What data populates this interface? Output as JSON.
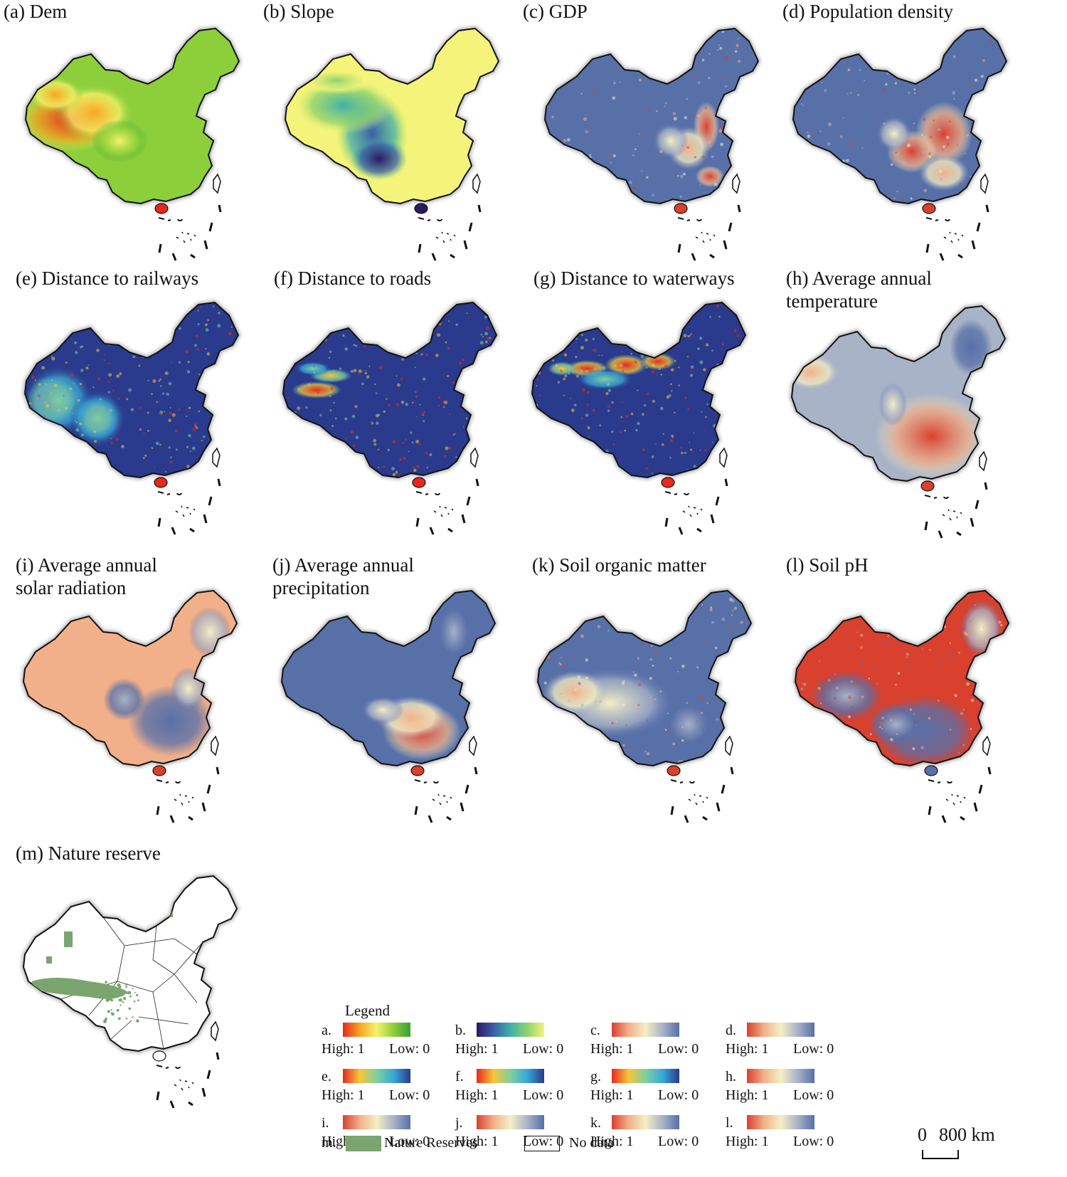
{
  "panels": [
    {
      "id": "a",
      "title": "(a) Dem",
      "title2": "",
      "ramp": "dem"
    },
    {
      "id": "b",
      "title": "(b) Slope",
      "title2": "",
      "ramp": "slope"
    },
    {
      "id": "c",
      "title": "(c) GDP",
      "title2": "",
      "ramp": "gdp"
    },
    {
      "id": "d",
      "title": "(d) Population density",
      "title2": "",
      "ramp": "pop"
    },
    {
      "id": "e",
      "title": "(e) Distance to railways",
      "title2": "",
      "ramp": "rail"
    },
    {
      "id": "f",
      "title": "(f) Distance to roads",
      "title2": "",
      "ramp": "road"
    },
    {
      "id": "g",
      "title": "(g) Distance to waterways",
      "title2": "",
      "ramp": "water"
    },
    {
      "id": "h",
      "title": "(h) Average annual",
      "title2": "temperature",
      "ramp": "temp"
    },
    {
      "id": "i",
      "title": "(i) Average annual",
      "title2": "solar radiation",
      "ramp": "solar"
    },
    {
      "id": "j",
      "title": "(j) Average annual",
      "title2": "precipitation",
      "ramp": "precip"
    },
    {
      "id": "k",
      "title": "(k) Soil organic matter",
      "title2": "",
      "ramp": "som"
    },
    {
      "id": "l",
      "title": "(l) Soil pH",
      "title2": "",
      "ramp": "ph"
    },
    {
      "id": "m",
      "title": "(m) Nature reserve",
      "title2": "",
      "ramp": "reserve"
    }
  ],
  "legend": {
    "title": "Legend",
    "high_label": "High: 1",
    "low_label": "Low: 0",
    "items": [
      {
        "key": "a.",
        "colors": [
          "#e8281e",
          "#f5a623",
          "#f7f36a",
          "#8ccf3b",
          "#37a032"
        ]
      },
      {
        "key": "b.",
        "colors": [
          "#2a1b5e",
          "#3a5ea8",
          "#3fb0a8",
          "#8fd36b",
          "#f4f47a"
        ]
      },
      {
        "key": "c.",
        "colors": [
          "#d9402e",
          "#f2b08a",
          "#f4efc4",
          "#a9b3c8",
          "#5870a8"
        ]
      },
      {
        "key": "d.",
        "colors": [
          "#d9402e",
          "#f2b08a",
          "#f4efc4",
          "#a9b3c8",
          "#5870a8"
        ]
      },
      {
        "key": "e.",
        "colors": [
          "#e8281e",
          "#f7c63a",
          "#7fd0a0",
          "#38a8d8",
          "#2a3a8c"
        ]
      },
      {
        "key": "f.",
        "colors": [
          "#e8281e",
          "#f7c63a",
          "#7fd0a0",
          "#38a8d8",
          "#2a3a8c"
        ]
      },
      {
        "key": "g.",
        "colors": [
          "#e8281e",
          "#f7c63a",
          "#7fd0a0",
          "#38a8d8",
          "#2a3a8c"
        ]
      },
      {
        "key": "h.",
        "colors": [
          "#d9402e",
          "#f2b08a",
          "#f4efc4",
          "#a9b3c8",
          "#5870a8"
        ]
      },
      {
        "key": "i.",
        "colors": [
          "#d9402e",
          "#f2b08a",
          "#f4efc4",
          "#a9b3c8",
          "#5870a8"
        ]
      },
      {
        "key": "j.",
        "colors": [
          "#d9402e",
          "#f2b08a",
          "#f4efc4",
          "#a9b3c8",
          "#5870a8"
        ]
      },
      {
        "key": "k.",
        "colors": [
          "#d9402e",
          "#f2b08a",
          "#f4efc4",
          "#a9b3c8",
          "#5870a8"
        ]
      },
      {
        "key": "l.",
        "colors": [
          "#d9402e",
          "#f2b08a",
          "#f4efc4",
          "#a9b3c8",
          "#5870a8"
        ]
      }
    ],
    "m_key": "m.",
    "nature_reserves_label": "Nature Reserves",
    "no_data_label": "No data"
  },
  "scale": {
    "zero": "0",
    "distance": "800 km"
  },
  "colors": {
    "reserve_green": "#7aa56e",
    "border": "#111111"
  }
}
